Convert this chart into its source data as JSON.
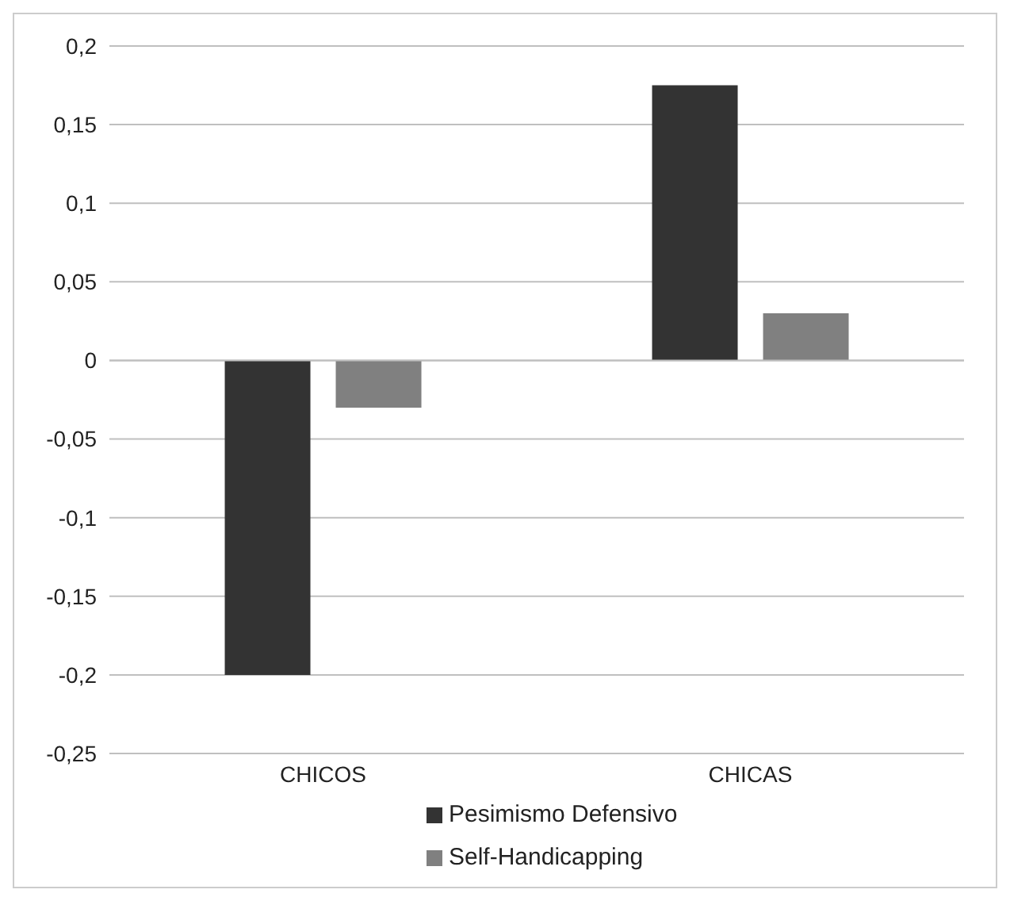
{
  "chart_data": {
    "type": "bar",
    "categories": [
      "CHICOS",
      "CHICAS"
    ],
    "series": [
      {
        "name": "Pesimismo Defensivo",
        "color": "#333333",
        "values": [
          -0.2,
          0.175
        ]
      },
      {
        "name": "Self-Handicapping",
        "color": "#808080",
        "values": [
          -0.03,
          0.03
        ]
      }
    ],
    "ylim": [
      -0.25,
      0.2
    ],
    "yticks": [
      {
        "value": -0.25,
        "label": "-0,25"
      },
      {
        "value": -0.2,
        "label": "-0,2"
      },
      {
        "value": -0.15,
        "label": "-0,15"
      },
      {
        "value": -0.1,
        "label": "-0,1"
      },
      {
        "value": -0.05,
        "label": "-0,05"
      },
      {
        "value": 0,
        "label": "0"
      },
      {
        "value": 0.05,
        "label": "0,05"
      },
      {
        "value": 0.1,
        "label": "0,1"
      },
      {
        "value": 0.15,
        "label": "0,15"
      },
      {
        "value": 0.2,
        "label": "0,2"
      }
    ],
    "grid": "y",
    "legend": "bottom"
  }
}
